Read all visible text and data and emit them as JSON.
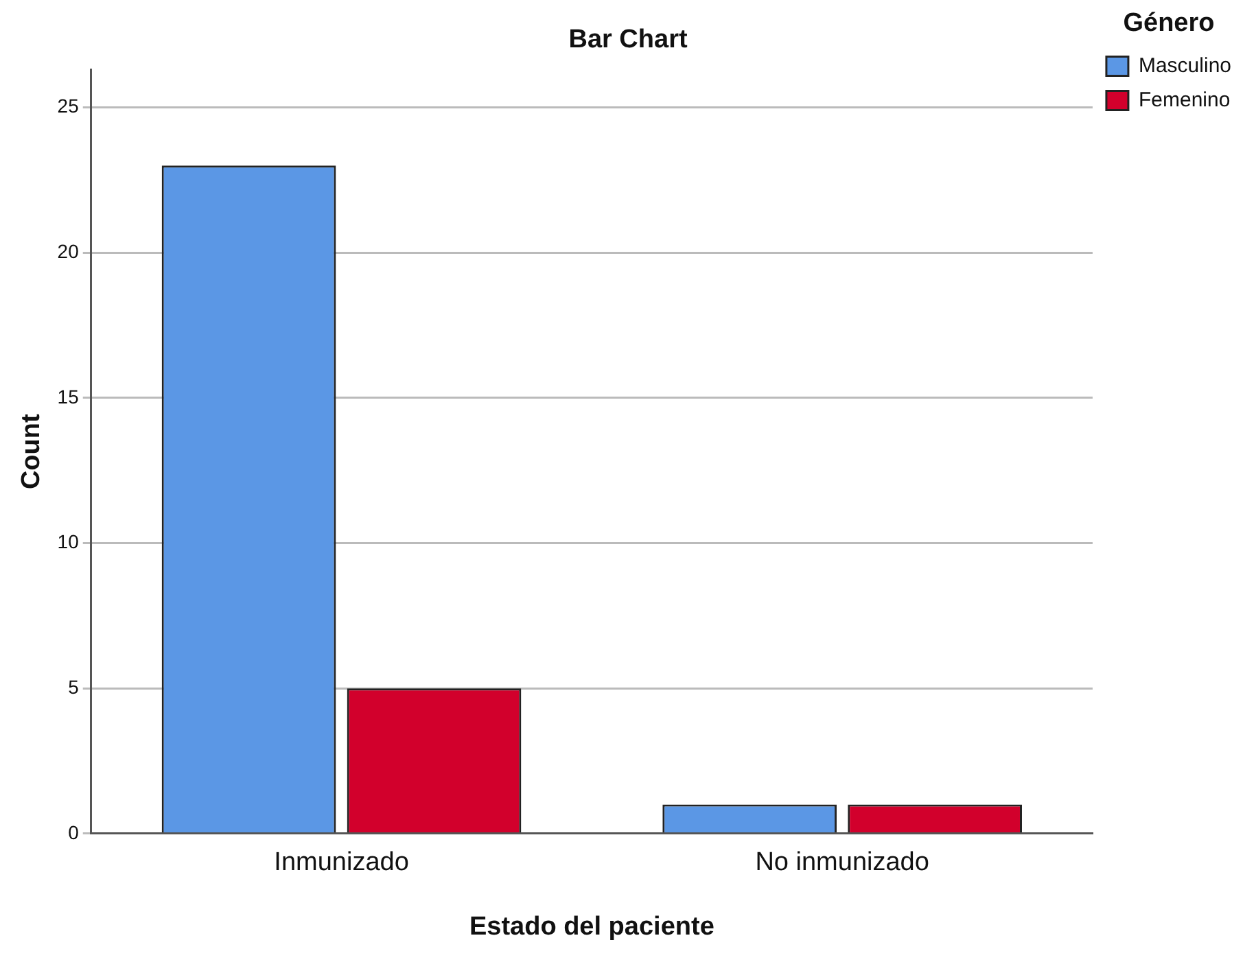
{
  "chart_data": {
    "type": "bar",
    "title": "Bar Chart",
    "xlabel": "Estado del paciente",
    "ylabel": "Count",
    "legend_title": "Género",
    "categories": [
      "Inmunizado",
      "No inmunizado"
    ],
    "series": [
      {
        "name": "Masculino",
        "color": "#5b97e5",
        "values": [
          23,
          1
        ]
      },
      {
        "name": "Femenino",
        "color": "#d2002c",
        "values": [
          5,
          1
        ]
      }
    ],
    "ylim": [
      0,
      26.3
    ],
    "yticks": [
      0,
      5,
      10,
      15,
      20,
      25
    ],
    "grid": "y",
    "legend": "top right"
  }
}
